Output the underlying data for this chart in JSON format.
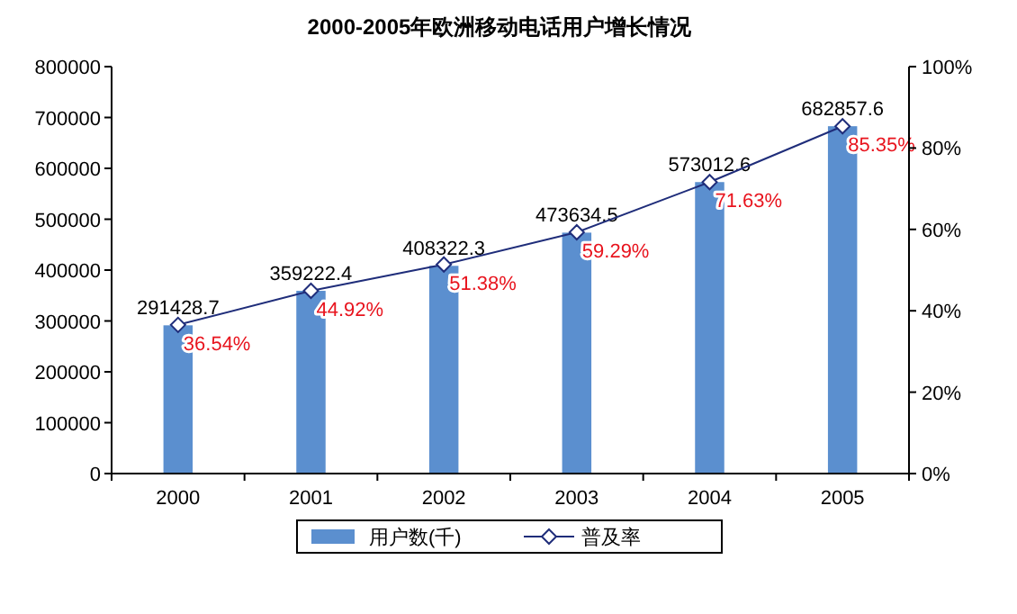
{
  "chart_data": {
    "type": "bar",
    "title": "2000-2005年欧洲移动电话用户增长情况",
    "categories": [
      "2000",
      "2001",
      "2002",
      "2003",
      "2004",
      "2005"
    ],
    "series": [
      {
        "name": "用户数(千)",
        "color": "#5b8fcf",
        "values": [
          291428.7,
          359222.4,
          408322.3,
          473634.5,
          573012.6,
          682857.6
        ],
        "value_labels": [
          "291428.7",
          "359222.4",
          "408322.3",
          "473634.5",
          "573012.6",
          "682857.6"
        ]
      },
      {
        "name": "普及率",
        "type": "line",
        "axis": "y2",
        "color": "#1f2d7a",
        "marker": "diamond",
        "values": [
          36.54,
          44.92,
          51.38,
          59.29,
          71.63,
          85.35
        ],
        "value_labels": [
          "36.54%",
          "44.92%",
          "51.38%",
          "59.29%",
          "71.63%",
          "85.35%"
        ]
      }
    ],
    "ylim": [
      0,
      800000
    ],
    "yticks": [
      0,
      100000,
      200000,
      300000,
      400000,
      500000,
      600000,
      700000,
      800000
    ],
    "y2lim": [
      0,
      100
    ],
    "y2ticks": [
      {
        "value": 0,
        "label": "0%"
      },
      {
        "value": 20,
        "label": "20%"
      },
      {
        "value": 40,
        "label": "40%"
      },
      {
        "value": 60,
        "label": "60%"
      },
      {
        "value": 80,
        "label": "80%"
      },
      {
        "value": 100,
        "label": "100%"
      }
    ],
    "legend": "bottom",
    "grid": false
  }
}
